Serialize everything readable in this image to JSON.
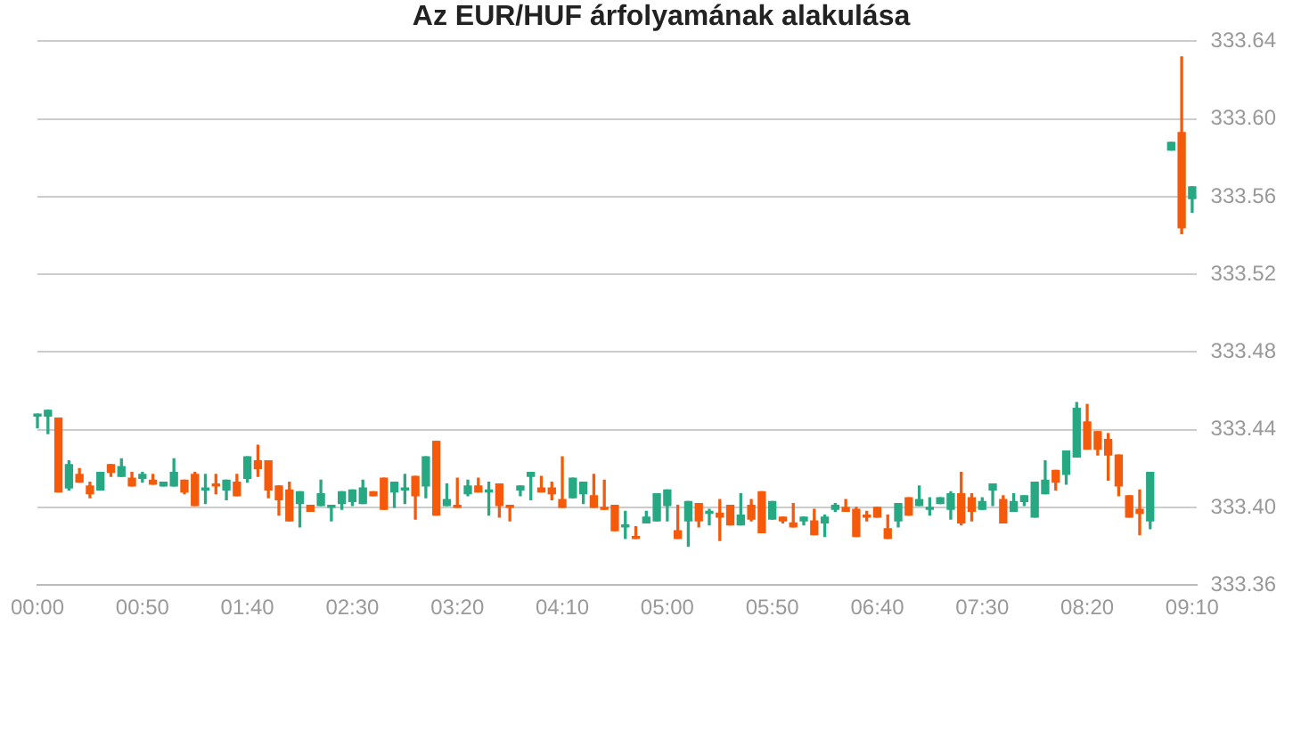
{
  "chart_data": {
    "type": "candlestick",
    "title": "Az EUR/HUF árfolyamának alakulása",
    "x": [
      0,
      0.0833,
      0.1667,
      0.25,
      0.3333,
      0.4167,
      0.5,
      0.5833,
      0.6667,
      0.75,
      0.8333,
      0.9167,
      1,
      1.0833,
      1.1667,
      1.25,
      1.3333,
      1.4167,
      1.5,
      1.5833,
      1.6667,
      1.75,
      1.8333,
      1.9167,
      2,
      2.0833,
      2.1667,
      2.25,
      2.3333,
      2.4167,
      2.5,
      2.5833,
      2.6667,
      2.75,
      2.8333,
      2.9167,
      3,
      3.0833,
      3.1667,
      3.25,
      3.3333,
      3.4167,
      3.5,
      3.5833,
      3.6667,
      3.75,
      3.8333,
      3.9167,
      4,
      4.0833,
      4.1667,
      4.25,
      4.3333,
      4.4167,
      4.5,
      4.5833,
      4.6667,
      4.75,
      4.8333,
      4.9167,
      5,
      5.0833,
      5.1667,
      5.25,
      5.3333,
      5.4167,
      5.5,
      5.5833,
      5.6667,
      5.75,
      5.8333,
      5.9167,
      6,
      6.0833,
      6.1667,
      6.25,
      6.3333,
      6.4167,
      6.5,
      6.5833,
      6.6667,
      6.75,
      6.8333,
      6.9167,
      7,
      7.0833,
      7.1667,
      7.25,
      7.3333,
      7.4167,
      7.5,
      7.5833,
      7.6667,
      7.75,
      7.8333,
      7.9167,
      8,
      8.0833,
      8.1667,
      8.25,
      8.3333,
      8.4167,
      8.5,
      8.5833,
      8.6667,
      8.75,
      8.8333,
      9,
      9.0833,
      9.1667
    ],
    "ohlc": [
      [
        333.447,
        333.448,
        333.441,
        333.448
      ],
      [
        333.447,
        333.45,
        333.438,
        333.45
      ],
      [
        333.446,
        333.446,
        333.408,
        333.408
      ],
      [
        333.41,
        333.424,
        333.409,
        333.422
      ],
      [
        333.417,
        333.42,
        333.413,
        333.413
      ],
      [
        333.411,
        333.413,
        333.405,
        333.407
      ],
      [
        333.409,
        333.418,
        333.409,
        333.418
      ],
      [
        333.422,
        333.422,
        333.416,
        333.418
      ],
      [
        333.416,
        333.425,
        333.416,
        333.421
      ],
      [
        333.415,
        333.418,
        333.411,
        333.411
      ],
      [
        333.415,
        333.418,
        333.413,
        333.417
      ],
      [
        333.414,
        333.417,
        333.412,
        333.412
      ],
      [
        333.411,
        333.413,
        333.411,
        333.413
      ],
      [
        333.411,
        333.425,
        333.411,
        333.418
      ],
      [
        333.414,
        333.414,
        333.407,
        333.408
      ],
      [
        333.417,
        333.418,
        333.401,
        333.401
      ],
      [
        333.409,
        333.417,
        333.402,
        333.41
      ],
      [
        333.412,
        333.417,
        333.407,
        333.411
      ],
      [
        333.409,
        333.414,
        333.404,
        333.414
      ],
      [
        333.413,
        333.417,
        333.406,
        333.406
      ],
      [
        333.415,
        333.426,
        333.413,
        333.426
      ],
      [
        333.424,
        333.432,
        333.416,
        333.42
      ],
      [
        333.424,
        333.424,
        333.405,
        333.409
      ],
      [
        333.411,
        333.411,
        333.396,
        333.404
      ],
      [
        333.409,
        333.413,
        333.393,
        333.393
      ],
      [
        333.402,
        333.408,
        333.39,
        333.408
      ],
      [
        333.401,
        333.401,
        333.398,
        333.398
      ],
      [
        333.401,
        333.414,
        333.401,
        333.407
      ],
      [
        333.4,
        333.401,
        333.393,
        333.401
      ],
      [
        333.402,
        333.408,
        333.399,
        333.408
      ],
      [
        333.403,
        333.409,
        333.401,
        333.409
      ],
      [
        333.402,
        333.414,
        333.402,
        333.41
      ],
      [
        333.408,
        333.408,
        333.406,
        333.406
      ],
      [
        333.415,
        333.415,
        333.399,
        333.399
      ],
      [
        333.408,
        333.413,
        333.4,
        333.413
      ],
      [
        333.409,
        333.417,
        333.402,
        333.41
      ],
      [
        333.416,
        333.416,
        333.394,
        333.406
      ],
      [
        333.411,
        333.426,
        333.405,
        333.426
      ],
      [
        333.434,
        333.434,
        333.396,
        333.396
      ],
      [
        333.401,
        333.412,
        333.401,
        333.404
      ],
      [
        333.401,
        333.415,
        333.4,
        333.4
      ],
      [
        333.407,
        333.414,
        333.406,
        333.411
      ],
      [
        333.411,
        333.415,
        333.408,
        333.408
      ],
      [
        333.408,
        333.413,
        333.396,
        333.409
      ],
      [
        333.412,
        333.412,
        333.395,
        333.401
      ],
      [
        333.401,
        333.401,
        333.393,
        333.4
      ],
      [
        333.409,
        333.411,
        333.406,
        333.411
      ],
      [
        333.416,
        333.418,
        333.404,
        333.418
      ],
      [
        333.41,
        333.416,
        333.408,
        333.408
      ],
      [
        333.41,
        333.413,
        333.404,
        333.407
      ],
      [
        333.404,
        333.426,
        333.4,
        333.4
      ],
      [
        333.405,
        333.415,
        333.405,
        333.415
      ],
      [
        333.407,
        333.413,
        333.402,
        333.413
      ],
      [
        333.406,
        333.417,
        333.4,
        333.4
      ],
      [
        333.4,
        333.414,
        333.399,
        333.399
      ],
      [
        333.401,
        333.401,
        333.388,
        333.388
      ],
      [
        333.39,
        333.398,
        333.384,
        333.391
      ],
      [
        333.385,
        333.39,
        333.384,
        333.384
      ],
      [
        333.392,
        333.398,
        333.392,
        333.395
      ],
      [
        333.393,
        333.407,
        333.393,
        333.407
      ],
      [
        333.401,
        333.409,
        333.393,
        333.409
      ],
      [
        333.388,
        333.401,
        333.384,
        333.384
      ],
      [
        333.393,
        333.403,
        333.38,
        333.403
      ],
      [
        333.402,
        333.402,
        333.39,
        333.393
      ],
      [
        333.397,
        333.399,
        333.391,
        333.398
      ],
      [
        333.397,
        333.404,
        333.383,
        333.395
      ],
      [
        333.401,
        333.401,
        333.391,
        333.391
      ],
      [
        333.391,
        333.407,
        333.391,
        333.396
      ],
      [
        333.401,
        333.404,
        333.393,
        333.394
      ],
      [
        333.408,
        333.408,
        333.387,
        333.387
      ],
      [
        333.394,
        333.403,
        333.394,
        333.403
      ],
      [
        333.395,
        333.395,
        333.392,
        333.393
      ],
      [
        333.392,
        333.402,
        333.39,
        333.39
      ],
      [
        333.393,
        333.395,
        333.391,
        333.395
      ],
      [
        333.393,
        333.399,
        333.386,
        333.386
      ],
      [
        333.392,
        333.396,
        333.385,
        333.395
      ],
      [
        333.399,
        333.402,
        333.398,
        333.401
      ],
      [
        333.4,
        333.404,
        333.398,
        333.398
      ],
      [
        333.399,
        333.4,
        333.385,
        333.385
      ],
      [
        333.396,
        333.398,
        333.393,
        333.395
      ],
      [
        333.4,
        333.4,
        333.395,
        333.395
      ],
      [
        333.389,
        333.396,
        333.384,
        333.384
      ],
      [
        333.393,
        333.402,
        333.39,
        333.402
      ],
      [
        333.405,
        333.405,
        333.396,
        333.396
      ],
      [
        333.401,
        333.411,
        333.401,
        333.404
      ],
      [
        333.399,
        333.405,
        333.396,
        333.4
      ],
      [
        333.402,
        333.405,
        333.402,
        333.405
      ],
      [
        333.399,
        333.408,
        333.394,
        333.407
      ],
      [
        333.407,
        333.418,
        333.391,
        333.392
      ],
      [
        333.405,
        333.407,
        333.393,
        333.398
      ],
      [
        333.399,
        333.405,
        333.399,
        333.403
      ],
      [
        333.409,
        333.412,
        333.401,
        333.412
      ],
      [
        333.404,
        333.406,
        333.392,
        333.392
      ],
      [
        333.398,
        333.407,
        333.398,
        333.403
      ],
      [
        333.403,
        333.406,
        333.401,
        333.406
      ],
      [
        333.395,
        333.413,
        333.395,
        333.413
      ],
      [
        333.407,
        333.424,
        333.407,
        333.414
      ],
      [
        333.419,
        333.419,
        333.409,
        333.413
      ],
      [
        333.417,
        333.429,
        333.412,
        333.429
      ],
      [
        333.426,
        333.454,
        333.426,
        333.451
      ],
      [
        333.444,
        333.453,
        333.43,
        333.43
      ],
      [
        333.439,
        333.439,
        333.427,
        333.43
      ],
      [
        333.435,
        333.438,
        333.414,
        333.427
      ],
      [
        333.427,
        333.427,
        333.406,
        333.411
      ],
      [
        333.406,
        333.406,
        333.395,
        333.395
      ],
      [
        333.399,
        333.409,
        333.386,
        333.397
      ],
      [
        333.393,
        333.418,
        333.389,
        333.418
      ],
      [
        333.584,
        333.588,
        333.584,
        333.588
      ],
      [
        333.593,
        333.632,
        333.541,
        333.544
      ],
      [
        333.559,
        333.565,
        333.552,
        333.565
      ]
    ],
    "colors": [
      "#26a883",
      "#26a883",
      "#f55a0a",
      "#26a883",
      "#f55a0a",
      "#f55a0a",
      "#26a883",
      "#f55a0a",
      "#26a883",
      "#f55a0a",
      "#26a883",
      "#f55a0a",
      "#26a883",
      "#26a883",
      "#f55a0a",
      "#f55a0a",
      "#26a883",
      "#f55a0a",
      "#26a883",
      "#f55a0a",
      "#26a883",
      "#f55a0a",
      "#f55a0a",
      "#f55a0a",
      "#f55a0a",
      "#26a883",
      "#f55a0a",
      "#26a883",
      "#26a883",
      "#26a883",
      "#26a883",
      "#26a883",
      "#f55a0a",
      "#f55a0a",
      "#26a883",
      "#26a883",
      "#f55a0a",
      "#26a883",
      "#f55a0a",
      "#26a883",
      "#f55a0a",
      "#26a883",
      "#f55a0a",
      "#26a883",
      "#f55a0a",
      "#f55a0a",
      "#26a883",
      "#26a883",
      "#f55a0a",
      "#f55a0a",
      "#f55a0a",
      "#26a883",
      "#26a883",
      "#f55a0a",
      "#f55a0a",
      "#f55a0a",
      "#26a883",
      "#f55a0a",
      "#26a883",
      "#26a883",
      "#26a883",
      "#f55a0a",
      "#26a883",
      "#f55a0a",
      "#26a883",
      "#f55a0a",
      "#f55a0a",
      "#26a883",
      "#f55a0a",
      "#f55a0a",
      "#26a883",
      "#f55a0a",
      "#f55a0a",
      "#26a883",
      "#f55a0a",
      "#26a883",
      "#26a883",
      "#f55a0a",
      "#f55a0a",
      "#f55a0a",
      "#f55a0a",
      "#f55a0a",
      "#26a883",
      "#f55a0a",
      "#26a883",
      "#26a883",
      "#26a883",
      "#26a883",
      "#f55a0a",
      "#f55a0a",
      "#26a883",
      "#26a883",
      "#f55a0a",
      "#26a883",
      "#26a883",
      "#26a883",
      "#26a883",
      "#f55a0a",
      "#26a883",
      "#26a883",
      "#f55a0a",
      "#f55a0a",
      "#f55a0a",
      "#f55a0a",
      "#f55a0a",
      "#f55a0a",
      "#26a883",
      "#26a883",
      "#f55a0a",
      "#26a883"
    ],
    "xlim": [
      0,
      9.2
    ],
    "xticks": [
      {
        "value": 0,
        "label": "00:00"
      },
      {
        "value": 0.8333,
        "label": "00:50"
      },
      {
        "value": 1.6667,
        "label": "01:40"
      },
      {
        "value": 2.5,
        "label": "02:30"
      },
      {
        "value": 3.3333,
        "label": "03:20"
      },
      {
        "value": 4.1667,
        "label": "04:10"
      },
      {
        "value": 5,
        "label": "05:00"
      },
      {
        "value": 5.8333,
        "label": "05:50"
      },
      {
        "value": 6.6667,
        "label": "06:40"
      },
      {
        "value": 7.5,
        "label": "07:30"
      },
      {
        "value": 8.3333,
        "label": "08:20"
      },
      {
        "value": 9.1667,
        "label": "09:10"
      }
    ],
    "ylim": [
      333.36,
      333.64
    ],
    "yticks": [
      333.36,
      {
        "value": 333.4,
        "label": "333.40"
      },
      333.44,
      333.48,
      333.52,
      333.56,
      {
        "value": 333.6,
        "label": "333.60"
      },
      333.64
    ],
    "grid": "y"
  }
}
